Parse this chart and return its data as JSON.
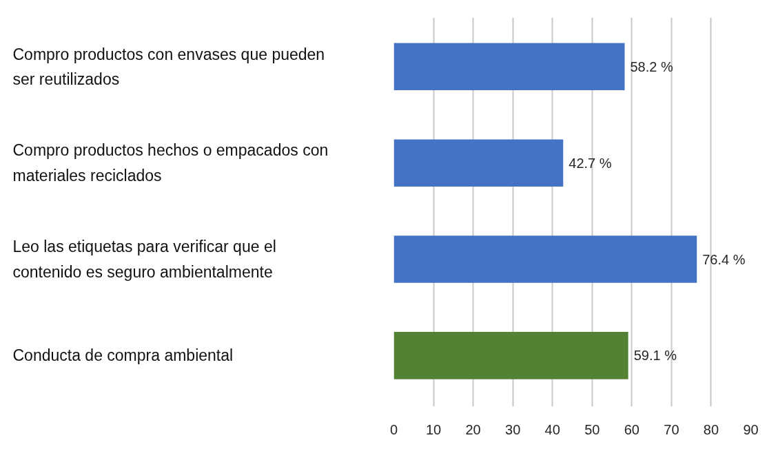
{
  "chart_data": {
    "type": "bar",
    "orientation": "horizontal",
    "categories": [
      "Compro productos con envases que pueden ser reutilizados",
      "Compro productos hechos o empacados con materiales reciclados",
      "Leo las etiquetas para verificar que el contenido es seguro ambientalmente",
      "Conducta de compra ambiental"
    ],
    "values": [
      58.2,
      42.7,
      76.4,
      59.1
    ],
    "colors": [
      "#4472c4",
      "#4472c4",
      "#4472c4",
      "#548235"
    ],
    "value_labels": [
      "58.2 %",
      "42.7 %",
      "76.4 %",
      "59.1 %"
    ],
    "xlim": [
      0,
      90
    ],
    "xticks": [
      0,
      10,
      20,
      30,
      40,
      50,
      60,
      70,
      80,
      90
    ],
    "grid": "x"
  }
}
